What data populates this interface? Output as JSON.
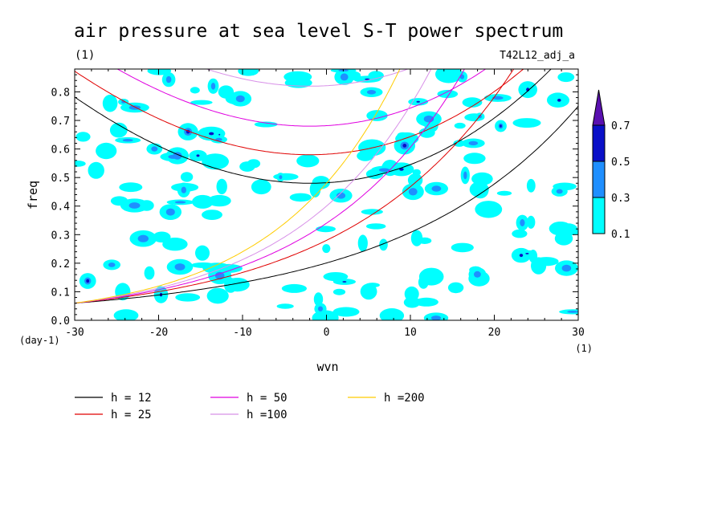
{
  "chart_data": {
    "type": "contour",
    "title": "air pressure at sea level S-T power spectrum",
    "subtitle_left": "(1)",
    "subtitle_right": "T42L12_adj_a",
    "xlabel": "wvn",
    "ylabel": "freq",
    "x_unit": "(1)",
    "y_unit": "(day-1)",
    "xlim": [
      -30,
      30
    ],
    "ylim": [
      0,
      0.88
    ],
    "x_ticks": [
      -30,
      -20,
      -10,
      0,
      10,
      20,
      30
    ],
    "x_tick_labels": [
      "-30",
      "-20",
      "-10",
      "0",
      "10",
      "20",
      "30"
    ],
    "y_ticks": [
      0,
      0.1,
      0.2,
      0.3,
      0.4,
      0.5,
      0.6,
      0.7,
      0.8
    ],
    "y_tick_labels": [
      "0.0",
      "0.1",
      "0.2",
      "0.3",
      "0.4",
      "0.5",
      "0.6",
      "0.7",
      "0.8"
    ],
    "colorbar": {
      "levels": [
        0.1,
        0.3,
        0.5,
        0.7
      ],
      "labels": [
        "0.1",
        "0.3",
        "0.5",
        "0.7"
      ],
      "colors": [
        "#00ffff",
        "#1f8fff",
        "#0a10c8",
        "#5a10b0"
      ]
    },
    "series": [
      {
        "name": "h = 12",
        "color": "#000000",
        "upper": {
          "min_freq": 0.48,
          "at_wvn_minus30": 0.82,
          "at_wvn_30": 0.86
        },
        "lower": {
          "at_wvn_minus30": 0.06,
          "at_wvn_0": 0.19,
          "at_wvn_30": 0.75
        }
      },
      {
        "name": "h = 25",
        "color": "#e00000",
        "upper": {
          "min_freq": 0.58
        },
        "lower": {
          "at_wvn_minus30": 0.06,
          "at_wvn_0": 0.28
        }
      },
      {
        "name": "h = 50",
        "color": "#e000e0",
        "upper": {
          "min_freq": 0.68
        },
        "lower": {
          "at_wvn_minus30": 0.06,
          "at_wvn_0": 0.34
        }
      },
      {
        "name": "h =100",
        "color": "#d890e8",
        "upper": {
          "min_freq": 0.82
        },
        "lower": {
          "at_wvn_minus30": 0.06,
          "at_wvn_0": 0.4
        }
      },
      {
        "name": "h =200",
        "color": "#ffcc00",
        "lower": {
          "at_wvn_minus30": 0.06,
          "at_wvn_0": 0.48
        }
      }
    ]
  }
}
